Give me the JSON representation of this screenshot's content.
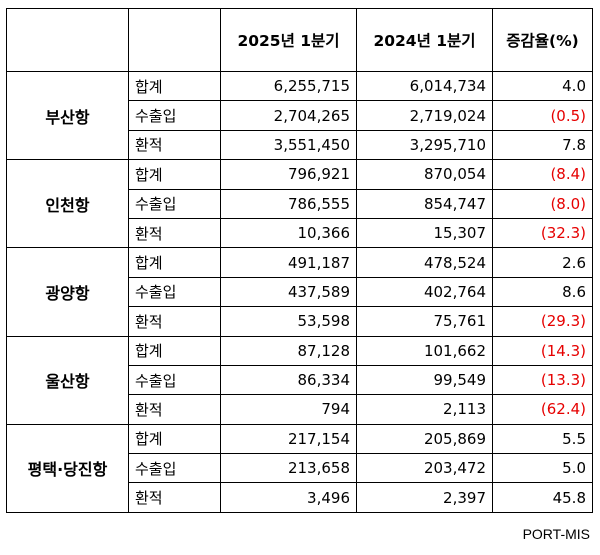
{
  "headers": {
    "col_2025": "2025년 1분기",
    "col_2024": "2024년 1분기",
    "col_change": "증감율(%)"
  },
  "ports": [
    {
      "name": "부산항",
      "rows": [
        {
          "category": "합계",
          "y2025": "6,255,715",
          "y2024": "6,014,734",
          "change": "4.0",
          "negative": false
        },
        {
          "category": "수출입",
          "y2025": "2,704,265",
          "y2024": "2,719,024",
          "change": "(0.5)",
          "negative": true
        },
        {
          "category": "환적",
          "y2025": "3,551,450",
          "y2024": "3,295,710",
          "change": "7.8",
          "negative": false
        }
      ]
    },
    {
      "name": "인천항",
      "rows": [
        {
          "category": "합계",
          "y2025": "796,921",
          "y2024": "870,054",
          "change": "(8.4)",
          "negative": true
        },
        {
          "category": "수출입",
          "y2025": "786,555",
          "y2024": "854,747",
          "change": "(8.0)",
          "negative": true
        },
        {
          "category": "환적",
          "y2025": "10,366",
          "y2024": "15,307",
          "change": "(32.3)",
          "negative": true
        }
      ]
    },
    {
      "name": "광양항",
      "rows": [
        {
          "category": "합계",
          "y2025": "491,187",
          "y2024": "478,524",
          "change": "2.6",
          "negative": false
        },
        {
          "category": "수출입",
          "y2025": "437,589",
          "y2024": "402,764",
          "change": "8.6",
          "negative": false
        },
        {
          "category": "환적",
          "y2025": "53,598",
          "y2024": "75,761",
          "change": "(29.3)",
          "negative": true
        }
      ]
    },
    {
      "name": "울산항",
      "rows": [
        {
          "category": "합계",
          "y2025": "87,128",
          "y2024": "101,662",
          "change": "(14.3)",
          "negative": true
        },
        {
          "category": "수출입",
          "y2025": "86,334",
          "y2024": "99,549",
          "change": "(13.3)",
          "negative": true
        },
        {
          "category": "환적",
          "y2025": "794",
          "y2024": "2,113",
          "change": "(62.4)",
          "negative": true
        }
      ]
    },
    {
      "name": "평택·당진항",
      "rows": [
        {
          "category": "합계",
          "y2025": "217,154",
          "y2024": "205,869",
          "change": "5.5",
          "negative": false
        },
        {
          "category": "수출입",
          "y2025": "213,658",
          "y2024": "203,472",
          "change": "5.0",
          "negative": false
        },
        {
          "category": "환적",
          "y2025": "3,496",
          "y2024": "2,397",
          "change": "45.8",
          "negative": false
        }
      ]
    }
  ],
  "colors": {
    "negative": "#e60000",
    "text": "#000000",
    "border": "#000000"
  },
  "source": "PORT-MIS"
}
